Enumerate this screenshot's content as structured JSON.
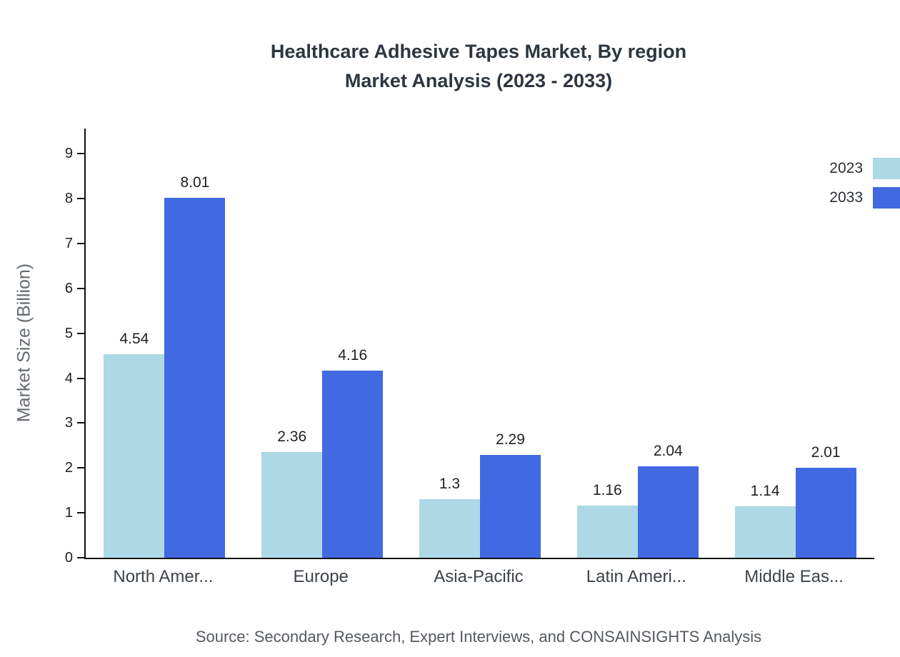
{
  "chart": {
    "title_line1": "Healthcare Adhesive Tapes Market, By region",
    "title_line2": "Market Analysis (2023 - 2033)",
    "ylabel": "Market Size (Billion)",
    "source": "Source: Secondary Research, Expert Interviews, and CONSAINSIGHTS Analysis"
  },
  "chart_data": {
    "type": "bar",
    "title": "Healthcare Adhesive Tapes Market, By region Market Analysis (2023 - 2033)",
    "xlabel": "",
    "ylabel": "Market Size (Billion)",
    "categories": [
      "North Amer...",
      "Europe",
      "Asia-Pacific",
      "Latin Ameri...",
      "Middle Eas..."
    ],
    "series": [
      {
        "name": "2023",
        "color": "#ADD8E6",
        "values": [
          4.54,
          2.36,
          1.3,
          1.16,
          1.14
        ]
      },
      {
        "name": "2033",
        "color": "#4169E1",
        "values": [
          8.01,
          4.16,
          2.29,
          2.04,
          2.01
        ]
      }
    ],
    "yticks": [
      0,
      1,
      2,
      3,
      4,
      5,
      6,
      7,
      8,
      9
    ],
    "ylim": [
      0,
      9.56
    ],
    "grid": false,
    "legend_position": "top-right",
    "source": "Source: Secondary Research, Expert Interviews, and CONSAINSIGHTS Analysis"
  }
}
